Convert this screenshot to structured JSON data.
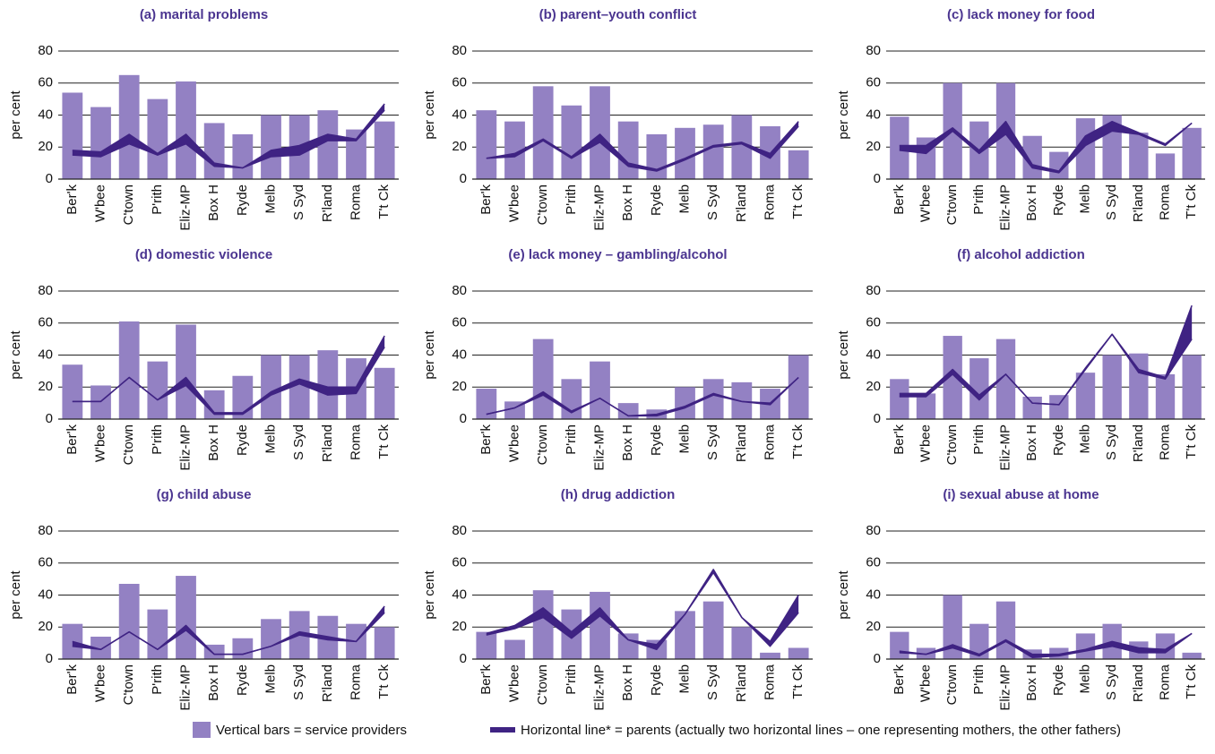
{
  "chart_data": [
    {
      "type": "bar-line",
      "title": "(a) marital problems",
      "ylabel": "per cent",
      "ylim": [
        0,
        80
      ],
      "yticks": [
        0,
        20,
        40,
        60,
        80
      ],
      "categories": [
        "Ber'k",
        "W'bee",
        "C'town",
        "P'rith",
        "Eliz-MP",
        "Box H",
        "Ryde",
        "Melb",
        "S Syd",
        "R'land",
        "Roma",
        "T't Ck"
      ],
      "bars": {
        "color": "#9381c3",
        "values": [
          54,
          45,
          65,
          50,
          61,
          35,
          28,
          40,
          40,
          43,
          31,
          36
        ]
      },
      "lines": [
        {
          "color": "#3f2383",
          "values": [
            15,
            14,
            22,
            15,
            22,
            8,
            7,
            14,
            15,
            24,
            24,
            43
          ]
        },
        {
          "color": "#3f2383",
          "values": [
            18,
            17,
            28,
            16,
            28,
            10,
            7,
            18,
            21,
            28,
            25,
            47
          ]
        }
      ]
    },
    {
      "type": "bar-line",
      "title": "(b) parent–youth conflict",
      "ylabel": "per cent",
      "ylim": [
        0,
        80
      ],
      "yticks": [
        0,
        20,
        40,
        60,
        80
      ],
      "categories": [
        "Ber'k",
        "W'bee",
        "C'town",
        "P'rith",
        "Eliz-MP",
        "Box H",
        "Ryde",
        "Melb",
        "S Syd",
        "R'land",
        "Roma",
        "T't Ck"
      ],
      "bars": {
        "color": "#9381c3",
        "values": [
          43,
          36,
          58,
          46,
          58,
          36,
          28,
          32,
          34,
          40,
          33,
          18
        ]
      },
      "lines": [
        {
          "color": "#3f2383",
          "values": [
            13,
            14,
            24,
            13,
            23,
            8,
            5,
            12,
            20,
            22,
            13,
            33
          ]
        },
        {
          "color": "#3f2383",
          "values": [
            13,
            16,
            25,
            14,
            28,
            10,
            6,
            13,
            21,
            23,
            16,
            36
          ]
        }
      ]
    },
    {
      "type": "bar-line",
      "title": "(c) lack money for food",
      "ylabel": "per cent",
      "ylim": [
        0,
        80
      ],
      "yticks": [
        0,
        20,
        40,
        60,
        80
      ],
      "categories": [
        "Ber'k",
        "W'bee",
        "C'town",
        "P'rith",
        "Eliz-MP",
        "Box H",
        "Ryde",
        "Melb",
        "S Syd",
        "R'land",
        "Roma",
        "T't Ck"
      ],
      "bars": {
        "color": "#9381c3",
        "values": [
          39,
          26,
          60,
          36,
          60,
          27,
          17,
          38,
          40,
          29,
          16,
          32
        ]
      },
      "lines": [
        {
          "color": "#3f2383",
          "values": [
            18,
            16,
            30,
            16,
            28,
            7,
            4,
            21,
            30,
            28,
            21,
            35
          ]
        },
        {
          "color": "#3f2383",
          "values": [
            21,
            21,
            32,
            18,
            36,
            9,
            5,
            27,
            36,
            29,
            22,
            35
          ]
        }
      ]
    },
    {
      "type": "bar-line",
      "title": "(d) domestic violence",
      "ylabel": "per cent",
      "ylim": [
        0,
        80
      ],
      "yticks": [
        0,
        20,
        40,
        60,
        80
      ],
      "categories": [
        "Ber'k",
        "W'bee",
        "C'town",
        "P'rith",
        "Eliz-MP",
        "Box H",
        "Ryde",
        "Melb",
        "S Syd",
        "R'land",
        "Roma",
        "T't Ck"
      ],
      "bars": {
        "color": "#9381c3",
        "values": [
          34,
          21,
          61,
          36,
          59,
          18,
          27,
          40,
          40,
          43,
          38,
          32
        ]
      },
      "lines": [
        {
          "color": "#3f2383",
          "values": [
            11,
            11,
            26,
            12,
            21,
            3,
            3,
            15,
            22,
            15,
            16,
            45
          ]
        },
        {
          "color": "#3f2383",
          "values": [
            11,
            11,
            26,
            12,
            26,
            4,
            4,
            17,
            25,
            20,
            20,
            52
          ]
        }
      ]
    },
    {
      "type": "bar-line",
      "title": "(e) lack money – gambling/alcohol",
      "ylabel": "per cent",
      "ylim": [
        0,
        80
      ],
      "yticks": [
        0,
        20,
        40,
        60,
        80
      ],
      "categories": [
        "Ber'k",
        "W'bee",
        "C'town",
        "P'rith",
        "Eliz-MP",
        "Box H",
        "Ryde",
        "Melb",
        "S Syd",
        "R'land",
        "Roma",
        "T't Ck"
      ],
      "bars": {
        "color": "#9381c3",
        "values": [
          19,
          11,
          50,
          25,
          36,
          10,
          6,
          20,
          25,
          23,
          19,
          40
        ]
      },
      "lines": [
        {
          "color": "#3f2383",
          "values": [
            3,
            7,
            15,
            4,
            13,
            2,
            2,
            7,
            15,
            11,
            9,
            26
          ]
        },
        {
          "color": "#3f2383",
          "values": [
            3,
            7,
            17,
            5,
            13,
            2,
            3,
            8,
            16,
            11,
            10,
            26
          ]
        }
      ]
    },
    {
      "type": "bar-line",
      "title": "(f) alcohol addiction",
      "ylabel": "per cent",
      "ylim": [
        0,
        80
      ],
      "yticks": [
        0,
        20,
        40,
        60,
        80
      ],
      "categories": [
        "Ber'k",
        "W'bee",
        "C'town",
        "P'rith",
        "Eliz-MP",
        "Box H",
        "Ryde",
        "Melb",
        "S Syd",
        "R'land",
        "Roma",
        "T't Ck"
      ],
      "bars": {
        "color": "#9381c3",
        "values": [
          25,
          16,
          52,
          38,
          50,
          14,
          15,
          29,
          40,
          41,
          28,
          40
        ]
      },
      "lines": [
        {
          "color": "#3f2383",
          "values": [
            14,
            14,
            28,
            12,
            28,
            10,
            9,
            31,
            53,
            29,
            25,
            50
          ]
        },
        {
          "color": "#3f2383",
          "values": [
            16,
            16,
            31,
            15,
            28,
            10,
            9,
            32,
            53,
            31,
            26,
            71
          ]
        }
      ]
    },
    {
      "type": "bar-line",
      "title": "(g) child abuse",
      "ylabel": "per cent",
      "ylim": [
        0,
        80
      ],
      "yticks": [
        0,
        20,
        40,
        60,
        80
      ],
      "categories": [
        "Ber'k",
        "W'bee",
        "C'town",
        "P'rith",
        "Eliz-MP",
        "Box H",
        "Ryde",
        "Melb",
        "S Syd",
        "R'land",
        "Roma",
        "T't Ck"
      ],
      "bars": {
        "color": "#9381c3",
        "values": [
          22,
          14,
          47,
          31,
          52,
          9,
          13,
          25,
          30,
          27,
          22,
          20
        ]
      },
      "lines": [
        {
          "color": "#3f2383",
          "values": [
            8,
            6,
            17,
            6,
            18,
            3,
            3,
            8,
            15,
            12,
            11,
            29
          ]
        },
        {
          "color": "#3f2383",
          "values": [
            11,
            6,
            17,
            6,
            21,
            3,
            3,
            8,
            17,
            14,
            11,
            33
          ]
        }
      ]
    },
    {
      "type": "bar-line",
      "title": "(h) drug addiction",
      "ylabel": "per cent",
      "ylim": [
        0,
        80
      ],
      "yticks": [
        0,
        20,
        40,
        60,
        80
      ],
      "categories": [
        "Ber'k",
        "W'bee",
        "C'town",
        "P'rith",
        "Eliz-MP",
        "Box H",
        "Ryde",
        "Melb",
        "S Syd",
        "R'land",
        "Roma",
        "T't Ck"
      ],
      "bars": {
        "color": "#9381c3",
        "values": [
          17,
          12,
          43,
          31,
          42,
          16,
          12,
          30,
          36,
          20,
          4,
          7
        ]
      },
      "lines": [
        {
          "color": "#3f2383",
          "values": [
            15,
            19,
            26,
            13,
            27,
            12,
            6,
            28,
            54,
            26,
            8,
            29
          ]
        },
        {
          "color": "#3f2383",
          "values": [
            16,
            21,
            32,
            17,
            32,
            12,
            9,
            28,
            56,
            26,
            11,
            40
          ]
        }
      ]
    },
    {
      "type": "bar-line",
      "title": "(i) sexual abuse at home",
      "ylabel": "per cent",
      "ylim": [
        0,
        80
      ],
      "yticks": [
        0,
        20,
        40,
        60,
        80
      ],
      "categories": [
        "Ber'k",
        "W'bee",
        "C'town",
        "P'rith",
        "Eliz-MP",
        "Box H",
        "Ryde",
        "Melb",
        "S Syd",
        "R'land",
        "Roma",
        "T't Ck"
      ],
      "bars": {
        "color": "#9381c3",
        "values": [
          17,
          7,
          40,
          22,
          36,
          6,
          7,
          16,
          22,
          11,
          16,
          4
        ]
      },
      "lines": [
        {
          "color": "#3f2383",
          "values": [
            4,
            3,
            7,
            2,
            11,
            1,
            2,
            5,
            8,
            4,
            4,
            16
          ]
        },
        {
          "color": "#3f2383",
          "values": [
            5,
            3,
            9,
            3,
            12,
            3,
            3,
            6,
            11,
            7,
            6,
            16
          ]
        }
      ]
    }
  ],
  "legend": [
    {
      "label": "Vertical bars = service providers",
      "color": "#9381c3"
    },
    {
      "label": "Horizontal line* = parents (actually two horizontal lines – one representing mothers, the other fathers)",
      "color": "#3f2383"
    }
  ]
}
